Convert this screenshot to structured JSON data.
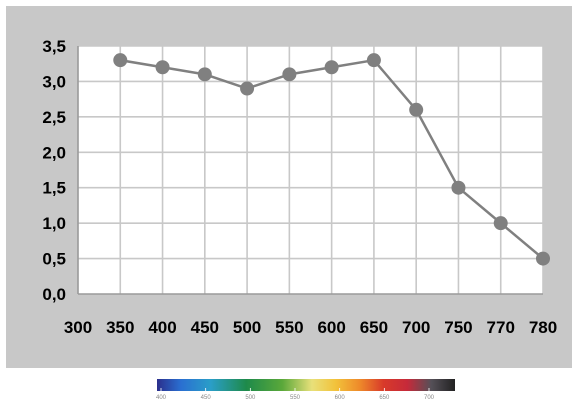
{
  "chart_data": {
    "type": "line",
    "title": "",
    "xlabel": "",
    "ylabel": "",
    "categories": [
      "300",
      "350",
      "400",
      "450",
      "500",
      "550",
      "600",
      "650",
      "700",
      "750",
      "770",
      "780"
    ],
    "y_tick_labels": [
      "0,0",
      "0,5",
      "1,0",
      "1,5",
      "2,0",
      "2,5",
      "3,0",
      "3,5"
    ],
    "ylim": [
      0,
      3.5
    ],
    "grid": true,
    "legend": "none",
    "series": [
      {
        "values": [
          null,
          3.3,
          3.2,
          3.1,
          2.9,
          3.1,
          3.2,
          3.3,
          2.6,
          1.5,
          1.0,
          0.5
        ]
      }
    ],
    "colors": {
      "panel_background": "#c8c8c8",
      "plot_background": "#ffffff",
      "grid": "#c8c8c8",
      "series": "#808080"
    }
  },
  "spectrum_scale": {
    "labels": [
      "400",
      "450",
      "500",
      "550",
      "600",
      "650",
      "700"
    ]
  }
}
